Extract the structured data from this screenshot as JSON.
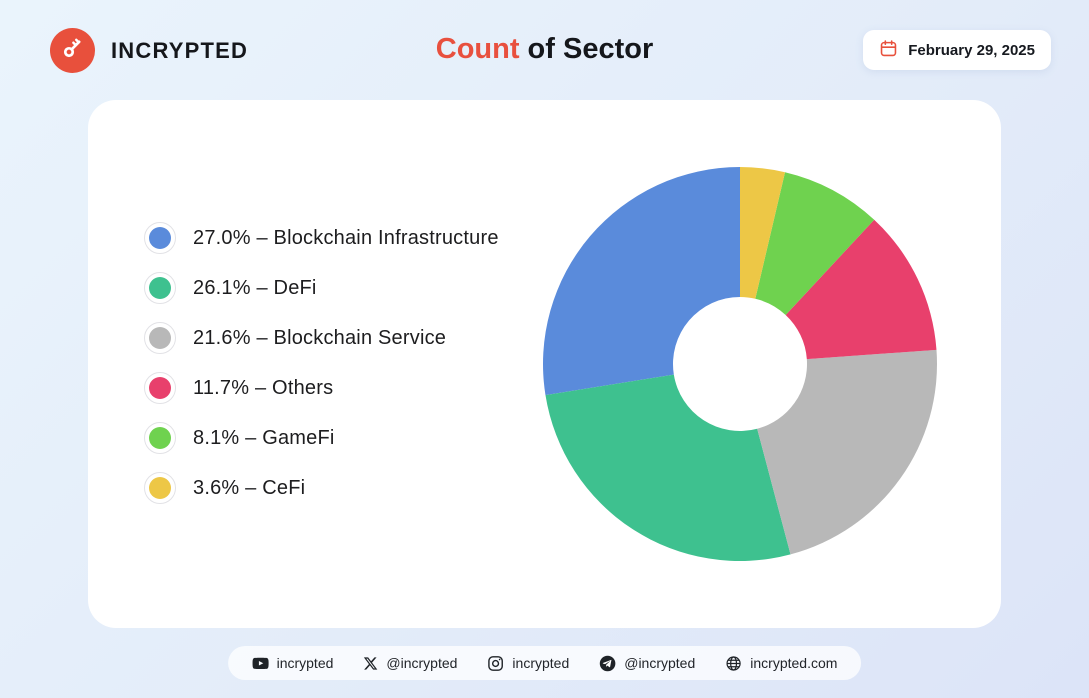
{
  "header": {
    "brand": {
      "name": "INCRYPTED"
    },
    "title": {
      "highlight": "Count",
      "rest": " of Sector",
      "highlight_color": "#E8503E"
    },
    "date_badge": {
      "label": "February 29, 2025"
    },
    "accent_color": "#E8503C"
  },
  "chart_data": {
    "type": "pie",
    "variant": "donut",
    "title": "Count of Sector",
    "inner_radius_ratio": 0.34,
    "start_angle_deg": -90,
    "direction": "counterclockwise",
    "legend_position": "left",
    "categories": [
      "Blockchain Infrastructure",
      "DeFi",
      "Blockchain Service",
      "Others",
      "GameFi",
      "CeFi"
    ],
    "values": [
      27.0,
      26.1,
      21.6,
      11.7,
      8.1,
      3.6
    ],
    "unit": "%",
    "colors": [
      "#5A8BDB",
      "#3EC18F",
      "#B8B8B8",
      "#E8406C",
      "#6FD24F",
      "#EDC746"
    ],
    "legend": [
      {
        "label": "27.0% – Blockchain Infrastructure"
      },
      {
        "label": "26.1% – DeFi"
      },
      {
        "label": "21.6% – Blockchain Service"
      },
      {
        "label": "11.7% – Others"
      },
      {
        "label": "8.1% – GameFi"
      },
      {
        "label": "3.6% – CeFi"
      }
    ]
  },
  "footer": {
    "links": [
      {
        "icon": "youtube-icon",
        "label": "incrypted"
      },
      {
        "icon": "x-icon",
        "label": "@incrypted"
      },
      {
        "icon": "instagram-icon",
        "label": "incrypted"
      },
      {
        "icon": "telegram-icon",
        "label": "@incrypted"
      },
      {
        "icon": "globe-icon",
        "label": "incrypted.com"
      }
    ]
  }
}
